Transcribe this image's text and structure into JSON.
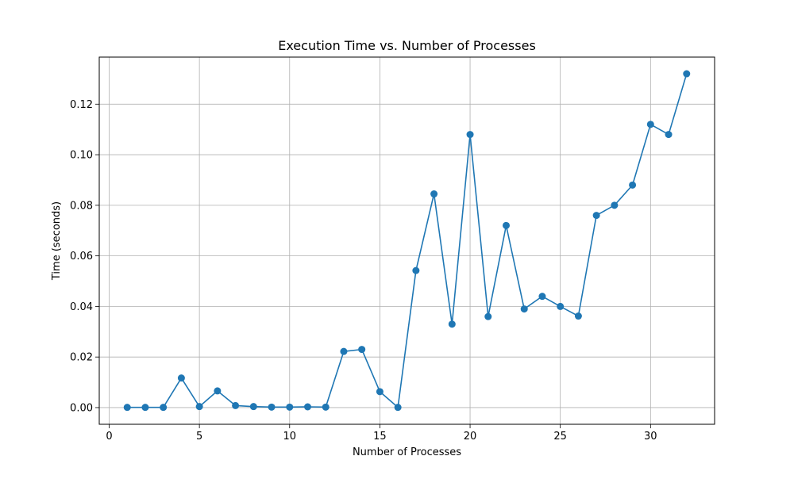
{
  "chart_data": {
    "type": "line",
    "title": "Execution Time vs. Number of Processes",
    "xlabel": "Number of Processes",
    "ylabel": "Time (seconds)",
    "xlim": [
      -0.55,
      33.55
    ],
    "ylim": [
      -0.0066,
      0.1386
    ],
    "xticks": [
      0,
      5,
      10,
      15,
      20,
      25,
      30
    ],
    "yticks": [
      0.0,
      0.02,
      0.04,
      0.06,
      0.08,
      0.1,
      0.12
    ],
    "xtick_labels": [
      "0",
      "5",
      "10",
      "15",
      "20",
      "25",
      "30"
    ],
    "ytick_labels": [
      "0.00",
      "0.02",
      "0.04",
      "0.06",
      "0.08",
      "0.10",
      "0.12"
    ],
    "grid": true,
    "marker": "circle",
    "color": "#1f77b4",
    "series": [
      {
        "x": [
          1,
          2,
          3,
          4,
          5,
          6,
          7,
          8,
          9,
          10,
          11,
          12,
          13,
          14,
          15,
          16,
          17,
          18,
          19,
          20,
          21,
          22,
          23,
          24,
          25,
          26,
          27,
          28,
          29,
          30,
          31,
          32
        ],
        "y": [
          0.0001,
          0.0001,
          0.0001,
          0.0117,
          0.0004,
          0.0066,
          0.0008,
          0.0004,
          0.0002,
          0.0002,
          0.0003,
          0.0002,
          0.0222,
          0.023,
          0.0063,
          0.0001,
          0.0542,
          0.0845,
          0.033,
          0.108,
          0.036,
          0.072,
          0.039,
          0.044,
          0.04,
          0.0362,
          0.076,
          0.08,
          0.088,
          0.112,
          0.108,
          0.132
        ]
      }
    ]
  }
}
